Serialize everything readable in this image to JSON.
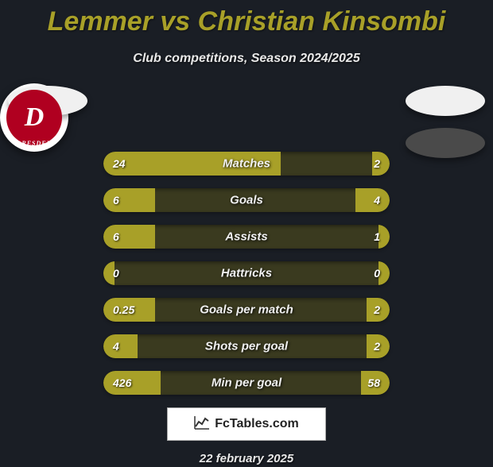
{
  "title": "Lemmer vs Christian Kinsombi",
  "subtitle": "Club competitions, Season 2024/2025",
  "date": "22 february 2025",
  "logo_text": "FcTables.com",
  "club_badge_letter": "D",
  "club_badge_ring": "DRESDEN",
  "colors": {
    "background": "#1a1e25",
    "accent": "#a8a028",
    "bar_track": "#3a3a1f",
    "text": "#ffffff",
    "badge_light": "#f0f0f0",
    "badge_dark": "#4a4a4a",
    "club_red": "#b00020"
  },
  "stats": [
    {
      "label": "Matches",
      "left_val": "24",
      "right_val": "2",
      "left_pct": 62,
      "right_pct": 6
    },
    {
      "label": "Goals",
      "left_val": "6",
      "right_val": "4",
      "left_pct": 18,
      "right_pct": 12
    },
    {
      "label": "Assists",
      "left_val": "6",
      "right_val": "1",
      "left_pct": 18,
      "right_pct": 4
    },
    {
      "label": "Hattricks",
      "left_val": "0",
      "right_val": "0",
      "left_pct": 4,
      "right_pct": 4
    },
    {
      "label": "Goals per match",
      "left_val": "0.25",
      "right_val": "2",
      "left_pct": 18,
      "right_pct": 8
    },
    {
      "label": "Shots per goal",
      "left_val": "4",
      "right_val": "2",
      "left_pct": 12,
      "right_pct": 8
    },
    {
      "label": "Min per goal",
      "left_val": "426",
      "right_val": "58",
      "left_pct": 20,
      "right_pct": 10
    }
  ]
}
